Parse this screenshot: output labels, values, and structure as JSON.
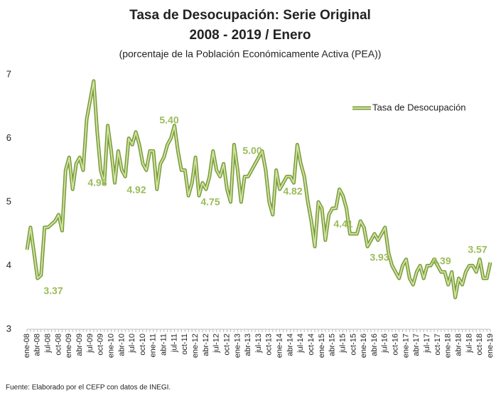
{
  "chart_data": {
    "type": "line",
    "title": "Tasa de Desocupación: Serie Original",
    "subtitle": "2008 - 2019 / Enero",
    "subtitle2": "(porcentaje de la Población Económicamente Activa (PEA))",
    "source": "Fuente: Elaborado por el CEFP con datos  de INEGI.",
    "categories": [
      "ene-08",
      null,
      null,
      "abr-08",
      null,
      null,
      "jul-08",
      null,
      null,
      "oct-08",
      null,
      null,
      "ene-09",
      null,
      null,
      "abr-09",
      null,
      null,
      "jul-09",
      null,
      null,
      "oct-09",
      null,
      null,
      "ene-10",
      null,
      null,
      "abr-10",
      null,
      null,
      "jul-10",
      null,
      null,
      "oct-10",
      null,
      null,
      "ene-11",
      null,
      null,
      "abr-11",
      null,
      null,
      "jul-11",
      null,
      null,
      "oct-11",
      null,
      null,
      "ene-12",
      null,
      null,
      "abr-12",
      null,
      null,
      "jul-12",
      null,
      null,
      "oct-12",
      null,
      null,
      "ene-13",
      null,
      null,
      "abr-13",
      null,
      null,
      "jul-13",
      null,
      null,
      "oct-13",
      null,
      null,
      "ene-14",
      null,
      null,
      "abr-14",
      null,
      null,
      "jul-14",
      null,
      null,
      "oct-14",
      null,
      null,
      "ene-15",
      null,
      null,
      "abr-15",
      null,
      null,
      "jul-15",
      null,
      null,
      "oct-15",
      null,
      null,
      "ene-16",
      null,
      null,
      "abr-16",
      null,
      null,
      "jul-16",
      null,
      null,
      "oct-16",
      null,
      null,
      "ene-17",
      null,
      null,
      "abr-17",
      null,
      null,
      "jul-17",
      null,
      null,
      "oct-17",
      null,
      null,
      "ene-18",
      null,
      null,
      "abr-18",
      null,
      null,
      "jul-18",
      null,
      null,
      "oct-18",
      null,
      null,
      "ene-19"
    ],
    "series": [
      {
        "name": "Tasa de Desocupación",
        "color": "#7a9a3a",
        "fill": "#cfe3a0",
        "values": [
          4.25,
          4.6,
          4.2,
          3.8,
          3.85,
          4.6,
          4.6,
          4.65,
          4.7,
          4.8,
          4.55,
          5.5,
          5.7,
          5.2,
          5.6,
          5.7,
          5.5,
          6.3,
          6.6,
          6.9,
          6.1,
          5.5,
          5.3,
          6.2,
          5.8,
          5.3,
          5.8,
          5.5,
          5.4,
          6.0,
          5.9,
          6.1,
          5.9,
          5.6,
          5.5,
          5.8,
          5.8,
          5.2,
          5.6,
          5.7,
          5.9,
          6.0,
          6.2,
          5.8,
          5.5,
          5.5,
          5.1,
          5.3,
          5.7,
          5.1,
          5.3,
          5.2,
          5.4,
          5.8,
          5.5,
          5.4,
          5.6,
          5.2,
          5.0,
          5.9,
          5.5,
          5.0,
          5.4,
          5.4,
          5.5,
          5.6,
          5.7,
          5.8,
          5.5,
          5.0,
          4.8,
          5.5,
          5.2,
          5.3,
          5.4,
          5.4,
          5.3,
          5.9,
          5.6,
          5.4,
          5.0,
          4.7,
          4.3,
          5.0,
          4.9,
          4.4,
          4.8,
          4.9,
          4.9,
          5.2,
          5.1,
          4.9,
          4.5,
          4.5,
          4.5,
          4.7,
          4.6,
          4.3,
          4.4,
          4.5,
          4.4,
          4.5,
          4.6,
          4.2,
          4.0,
          3.9,
          3.8,
          4.0,
          4.1,
          3.8,
          3.7,
          3.9,
          4.0,
          3.8,
          4.0,
          4.0,
          4.1,
          4.0,
          3.9,
          3.9,
          3.7,
          3.9,
          3.5,
          3.8,
          3.7,
          3.9,
          4.0,
          4.0,
          3.9,
          4.1,
          3.8,
          3.8,
          4.05
        ]
      }
    ],
    "annotations": [
      "3.37",
      "4.98",
      "4.92",
      "5.40",
      "4.75",
      "5.00",
      "4.82",
      "4.41",
      "3.93",
      "3.39",
      "3.57"
    ],
    "ylim": [
      3,
      7
    ],
    "yticks": [
      3,
      4,
      5,
      6,
      7
    ],
    "grid": false,
    "legend": "upper right"
  }
}
